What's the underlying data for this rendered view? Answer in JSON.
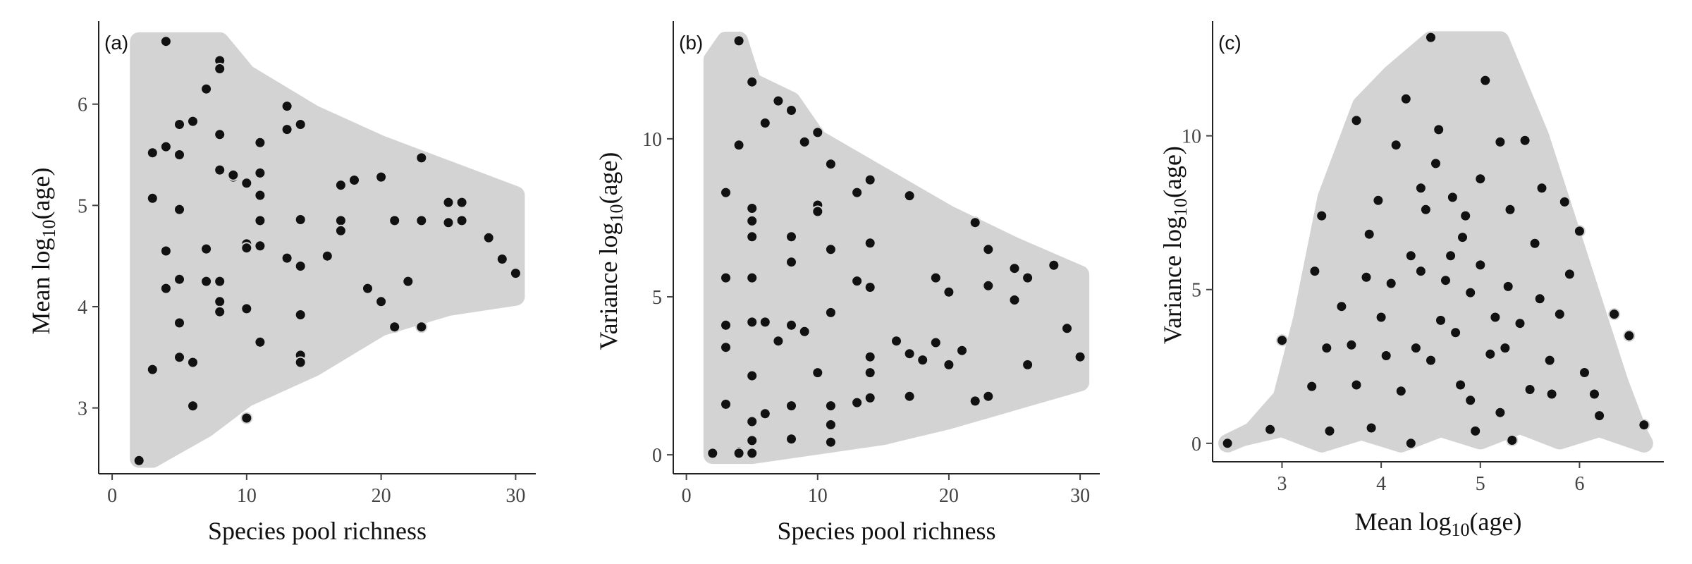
{
  "chart_data": [
    {
      "type": "scatter",
      "panel_label": "(a)",
      "xlabel": "Species pool richness",
      "ylabel": {
        "pre": "Mean log",
        "sub": "10",
        "post": "(age)"
      },
      "xlim": [
        -1,
        31.5
      ],
      "ylim": [
        2.35,
        6.75
      ],
      "xticks": [
        0,
        10,
        20,
        30
      ],
      "yticks": [
        3,
        4,
        5,
        6
      ],
      "grid": false,
      "colors": {
        "background_points": "#d3d3d3",
        "highlight_points": "#111111"
      },
      "background_region": [
        [
          2,
          2.5
        ],
        [
          2,
          6.62
        ],
        [
          8,
          6.62
        ],
        [
          10,
          6.3
        ],
        [
          15,
          5.9
        ],
        [
          20,
          5.6
        ],
        [
          25,
          5.35
        ],
        [
          30,
          5.1
        ],
        [
          30,
          4.1
        ],
        [
          25,
          4.0
        ],
        [
          20,
          3.8
        ],
        [
          15,
          3.4
        ],
        [
          10,
          3.1
        ],
        [
          7,
          2.8
        ],
        [
          5,
          2.65
        ],
        [
          3,
          2.5
        ]
      ],
      "series": [
        {
          "x": [
            2,
            3,
            3,
            3,
            4,
            4,
            4,
            4,
            5,
            5,
            5,
            5,
            5,
            5,
            6,
            6,
            6,
            7,
            7,
            7,
            8,
            8,
            8,
            8,
            8,
            8,
            8,
            9,
            9,
            10,
            10,
            10,
            10,
            10,
            11,
            11,
            11,
            11,
            11,
            11,
            13,
            13,
            13,
            14,
            14,
            14,
            14,
            14,
            14,
            16,
            17,
            17,
            17,
            18,
            19,
            20,
            20,
            21,
            21,
            22,
            23,
            23,
            23,
            25,
            25,
            26,
            26,
            28,
            29,
            30
          ],
          "y": [
            2.48,
            3.38,
            5.07,
            5.52,
            5.58,
            4.55,
            4.18,
            6.62,
            5.5,
            5.8,
            4.96,
            4.27,
            3.84,
            3.5,
            3.45,
            3.02,
            5.83,
            4.57,
            6.15,
            4.25,
            6.43,
            6.35,
            5.7,
            5.35,
            4.25,
            4.05,
            3.95,
            5.28,
            5.3,
            2.9,
            5.22,
            4.62,
            4.58,
            3.98,
            5.62,
            5.32,
            5.1,
            4.85,
            4.6,
            3.65,
            5.98,
            5.75,
            4.48,
            4.86,
            4.4,
            3.92,
            3.52,
            3.45,
            5.8,
            4.5,
            5.2,
            4.85,
            4.75,
            5.25,
            4.18,
            5.28,
            4.05,
            3.8,
            4.85,
            4.25,
            5.47,
            4.85,
            3.8,
            5.03,
            4.83,
            5.03,
            4.85,
            4.68,
            4.47,
            4.33
          ]
        }
      ]
    },
    {
      "type": "scatter",
      "panel_label": "(b)",
      "xlabel": "Species pool richness",
      "ylabel": {
        "pre": "Variance log",
        "sub": "10",
        "post": "(age)"
      },
      "xlim": [
        -1,
        31.5
      ],
      "ylim": [
        -0.6,
        13.5
      ],
      "xticks": [
        0,
        10,
        20,
        30
      ],
      "yticks": [
        0,
        5,
        10
      ],
      "grid": false,
      "colors": {
        "background_points": "#d3d3d3",
        "highlight_points": "#111111"
      },
      "background_region": [
        [
          2,
          0
        ],
        [
          2,
          12.5
        ],
        [
          3,
          13.1
        ],
        [
          4,
          13.1
        ],
        [
          5,
          11.8
        ],
        [
          8,
          11.2
        ],
        [
          10,
          10
        ],
        [
          15,
          8.8
        ],
        [
          20,
          7.6
        ],
        [
          25,
          6.6
        ],
        [
          30,
          5.7
        ],
        [
          30,
          2.3
        ],
        [
          25,
          1.7
        ],
        [
          20,
          1.1
        ],
        [
          15,
          0.6
        ],
        [
          10,
          0.3
        ],
        [
          5,
          0
        ],
        [
          2,
          0
        ]
      ],
      "series": [
        {
          "x": [
            2,
            3,
            3,
            3,
            3,
            3,
            4,
            4,
            4,
            4,
            4,
            5,
            5,
            5,
            5,
            5,
            5,
            5,
            5,
            5,
            5,
            6,
            6,
            6,
            7,
            7,
            8,
            8,
            8,
            8,
            8,
            8,
            9,
            9,
            10,
            10,
            10,
            10,
            11,
            11,
            11,
            11,
            11,
            11,
            13,
            13,
            13,
            14,
            14,
            14,
            14,
            14,
            14,
            16,
            17,
            17,
            17,
            18,
            19,
            19,
            20,
            20,
            21,
            22,
            22,
            23,
            23,
            23,
            25,
            25,
            26,
            26,
            28,
            29,
            30
          ],
          "y": [
            0.05,
            8.3,
            5.6,
            4.1,
            3.4,
            1.6,
            13.1,
            9.8,
            0.05,
            0.1,
            0.05,
            11.8,
            7.8,
            7.4,
            6.9,
            5.6,
            4.2,
            2.5,
            1.05,
            0.45,
            0.05,
            10.5,
            4.2,
            1.3,
            11.2,
            3.6,
            10.9,
            6.9,
            6.1,
            4.1,
            1.55,
            0.5,
            3.9,
            9.9,
            10.2,
            7.9,
            7.7,
            2.6,
            9.2,
            6.5,
            4.5,
            1.55,
            0.95,
            0.4,
            8.3,
            5.5,
            1.65,
            8.7,
            5.3,
            3.1,
            2.6,
            1.8,
            6.7,
            3.6,
            8.2,
            3.2,
            1.85,
            3.0,
            5.6,
            3.55,
            5.15,
            2.85,
            3.3,
            7.35,
            1.7,
            6.5,
            5.35,
            1.85,
            5.9,
            4.9,
            5.6,
            2.85,
            6.0,
            4.0,
            3.1
          ]
        }
      ]
    },
    {
      "type": "scatter",
      "panel_label": "(c)",
      "xlabel": {
        "pre": "Mean log",
        "sub": "10",
        "post": "(age)"
      },
      "ylabel": {
        "pre": "Variance log",
        "sub": "10",
        "post": "(age)"
      },
      "xlim": [
        2.3,
        6.85
      ],
      "ylim": [
        -0.6,
        13.5
      ],
      "xticks": [
        3,
        4,
        5,
        6
      ],
      "yticks": [
        0,
        5,
        10
      ],
      "grid": false,
      "colors": {
        "background_points": "#d3d3d3",
        "highlight_points": "#111111"
      },
      "background_region": [
        [
          2.45,
          0
        ],
        [
          2.7,
          0.4
        ],
        [
          3.0,
          1.5
        ],
        [
          3.2,
          4.0
        ],
        [
          3.45,
          8.0
        ],
        [
          3.8,
          11.0
        ],
        [
          4.1,
          12.0
        ],
        [
          4.5,
          13.1
        ],
        [
          4.9,
          13.1
        ],
        [
          5.2,
          13.1
        ],
        [
          5.6,
          10.0
        ],
        [
          5.9,
          7.0
        ],
        [
          6.1,
          5.0
        ],
        [
          6.4,
          2.0
        ],
        [
          6.6,
          0.3
        ],
        [
          6.65,
          0
        ],
        [
          6.2,
          0.5
        ],
        [
          5.8,
          0.1
        ],
        [
          5.4,
          0.6
        ],
        [
          5.0,
          0.1
        ],
        [
          4.6,
          0.5
        ],
        [
          4.2,
          0.0
        ],
        [
          3.8,
          0.4
        ],
        [
          3.4,
          0.0
        ],
        [
          3.0,
          0.5
        ],
        [
          2.6,
          0.2
        ]
      ],
      "series": [
        {
          "x": [
            2.45,
            2.88,
            3.0,
            3.3,
            3.33,
            3.4,
            3.45,
            3.48,
            3.6,
            3.7,
            3.75,
            3.75,
            3.85,
            3.88,
            3.9,
            3.97,
            4.0,
            4.05,
            4.1,
            4.15,
            4.2,
            4.25,
            4.3,
            4.3,
            4.35,
            4.4,
            4.4,
            4.45,
            4.5,
            4.5,
            4.55,
            4.58,
            4.6,
            4.65,
            4.7,
            4.72,
            4.75,
            4.8,
            4.82,
            4.85,
            4.9,
            4.9,
            4.95,
            5.0,
            5.0,
            5.05,
            5.1,
            5.15,
            5.2,
            5.2,
            5.25,
            5.28,
            5.3,
            5.32,
            5.4,
            5.45,
            5.5,
            5.55,
            5.6,
            5.62,
            5.7,
            5.72,
            5.8,
            5.85,
            5.9,
            6.0,
            6.05,
            6.15,
            6.2,
            6.35,
            6.5,
            6.65
          ],
          "y": [
            0,
            0.45,
            3.35,
            1.85,
            5.6,
            7.4,
            3.1,
            0.4,
            4.45,
            3.2,
            1.9,
            10.5,
            5.4,
            6.8,
            0.5,
            7.9,
            4.1,
            2.85,
            5.2,
            9.7,
            1.7,
            11.2,
            0,
            6.1,
            3.1,
            5.6,
            8.3,
            7.6,
            2.7,
            13.2,
            9.1,
            10.2,
            4.0,
            5.3,
            6.1,
            8.0,
            3.6,
            1.9,
            6.7,
            7.4,
            4.9,
            1.4,
            0.4,
            8.6,
            5.8,
            11.8,
            2.9,
            4.1,
            1.0,
            9.8,
            3.1,
            5.1,
            7.6,
            0.1,
            3.9,
            9.85,
            1.75,
            6.5,
            4.7,
            8.3,
            2.7,
            1.6,
            4.2,
            7.85,
            5.5,
            6.9,
            2.3,
            1.6,
            0.9,
            4.2,
            3.5,
            0.6
          ]
        }
      ]
    }
  ]
}
